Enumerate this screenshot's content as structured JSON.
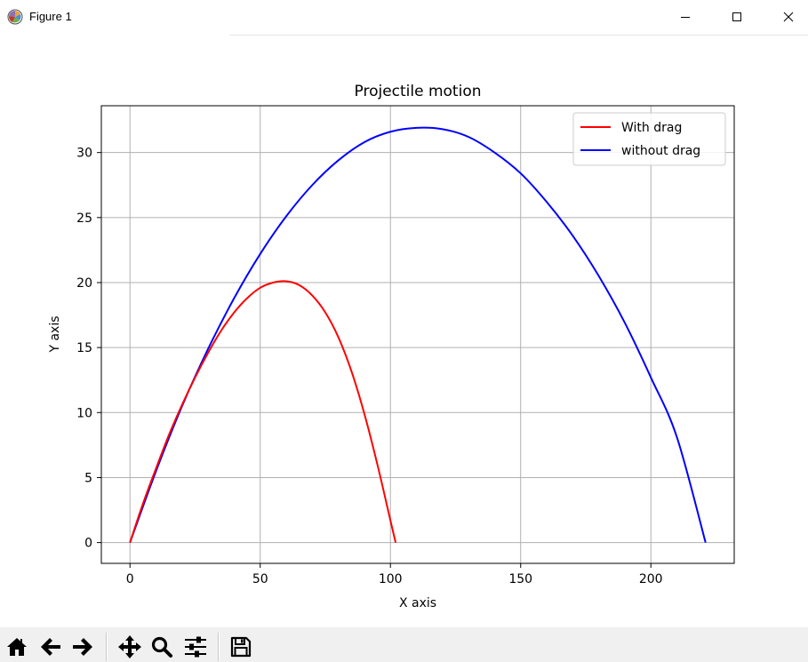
{
  "window": {
    "title": "Figure 1",
    "icon": "matplotlib-icon",
    "controls": {
      "minimize": "minimize-icon",
      "maximize": "maximize-icon",
      "close": "close-icon"
    }
  },
  "toolbar": {
    "tools": [
      {
        "name": "home-button",
        "icon": "home-icon"
      },
      {
        "name": "back-button",
        "icon": "arrow-left-icon"
      },
      {
        "name": "forward-button",
        "icon": "arrow-right-icon"
      },
      {
        "name": "pan-button",
        "icon": "move-icon"
      },
      {
        "name": "zoom-button",
        "icon": "magnifier-icon"
      },
      {
        "name": "configure-subplots-button",
        "icon": "sliders-icon"
      },
      {
        "name": "save-button",
        "icon": "floppy-disk-icon"
      }
    ]
  },
  "chart_data": {
    "type": "line",
    "title": "Projectile motion",
    "xlabel": "X axis",
    "ylabel": "Y axis",
    "xlim": [
      -11,
      232
    ],
    "ylim": [
      -1.6,
      33.6
    ],
    "xticks": [
      0,
      50,
      100,
      150,
      200
    ],
    "yticks": [
      0,
      5,
      10,
      15,
      20,
      25,
      30
    ],
    "grid": true,
    "legend_position": "top-right",
    "series": [
      {
        "name": "With drag",
        "color": "#ff0000",
        "x": [
          0,
          5,
          10,
          15,
          20,
          25,
          30,
          35,
          40,
          45,
          50,
          55,
          60,
          65,
          70,
          75,
          80,
          85,
          90,
          95,
          100,
          102
        ],
        "y": [
          0,
          3.0,
          5.7,
          8.3,
          10.6,
          12.7,
          14.6,
          16.3,
          17.7,
          18.8,
          19.6,
          20.0,
          20.1,
          19.8,
          19.0,
          17.7,
          15.8,
          13.2,
          9.9,
          6.0,
          1.7,
          0
        ]
      },
      {
        "name": "without drag",
        "color": "#0000ff",
        "x": [
          0,
          10,
          20,
          30,
          40,
          50,
          60,
          70,
          80,
          90,
          100,
          110,
          120,
          130,
          140,
          150,
          160,
          170,
          180,
          190,
          200,
          210,
          221
        ],
        "y": [
          0,
          5.5,
          10.5,
          14.9,
          18.8,
          22.2,
          25.1,
          27.5,
          29.4,
          30.8,
          31.6,
          31.9,
          31.8,
          31.2,
          30.0,
          28.4,
          26.2,
          23.6,
          20.5,
          16.9,
          12.7,
          8.1,
          0
        ]
      }
    ]
  }
}
